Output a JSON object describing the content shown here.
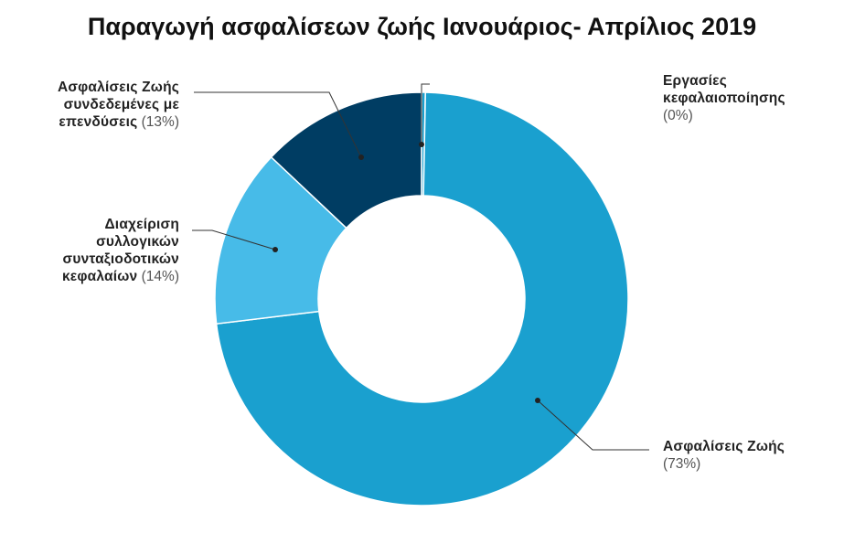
{
  "title": "Παραγωγή ασφαλίσεων ζωής Ιανουάριος- Απρίλιος 2019",
  "chart_data": {
    "type": "pie",
    "title": "Παραγωγή ασφαλίσεων ζωής Ιανουάριος- Απρίλιος 2019",
    "donut": true,
    "legend": "none",
    "slices": [
      {
        "label_lines": [
          "Εργασίες",
          "κεφαλαιοποίησης"
        ],
        "value": 0.3,
        "percent_label": "(0%)",
        "color": "#1aa0cf"
      },
      {
        "label_lines": [
          "Ασφαλίσεις Ζωής"
        ],
        "value": 73,
        "percent_label": "(73%)",
        "color": "#1aa0cf"
      },
      {
        "label_lines": [
          "Διαχείριση",
          "συλλογικών",
          "συνταξιοδοτικών",
          "κεφαλαίων"
        ],
        "value": 14,
        "percent_label": "(14%)",
        "color": "#47bbe8"
      },
      {
        "label_lines": [
          "Ασφαλίσεις Ζωής",
          "συνδεδεμένες με",
          "επενδύσεις"
        ],
        "value": 13,
        "percent_label": "(13%)",
        "color": "#003d63"
      }
    ]
  }
}
